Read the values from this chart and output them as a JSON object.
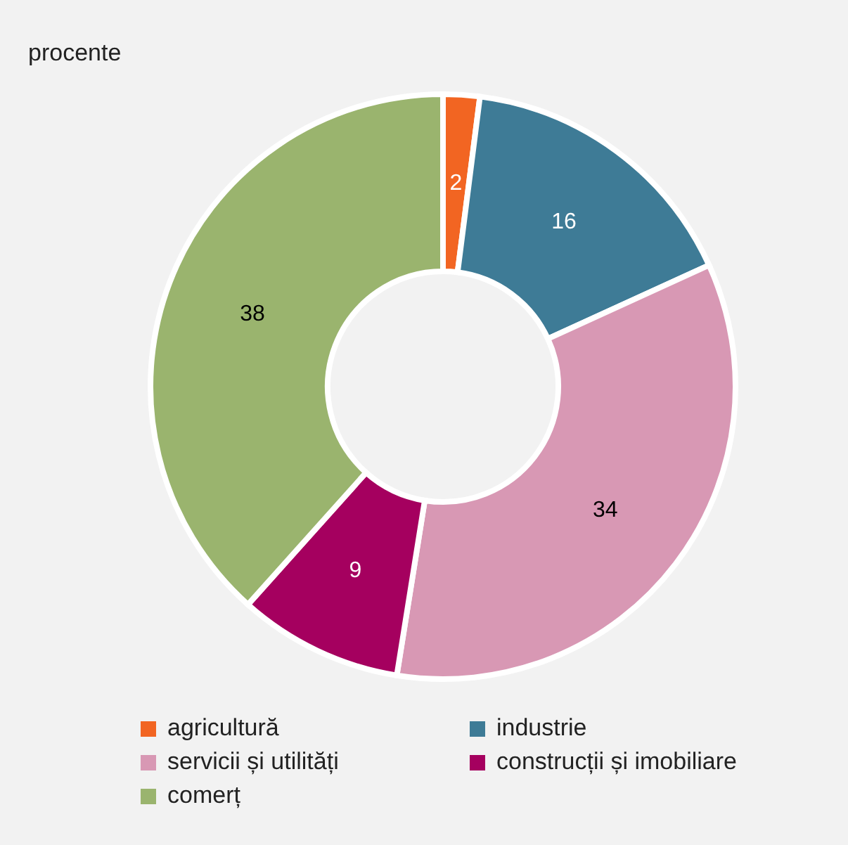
{
  "chart_data": {
    "type": "donut",
    "title": "procente",
    "categories": [
      "agricultură",
      "industrie",
      "servicii și utilități",
      "construcții și imobiliare",
      "comerț"
    ],
    "values": [
      2,
      16,
      34,
      9,
      38
    ],
    "colors": [
      "#f26522",
      "#3e7b96",
      "#d898b4",
      "#a5005f",
      "#9ab46e"
    ],
    "data_labels": true,
    "legend": "bottom"
  }
}
